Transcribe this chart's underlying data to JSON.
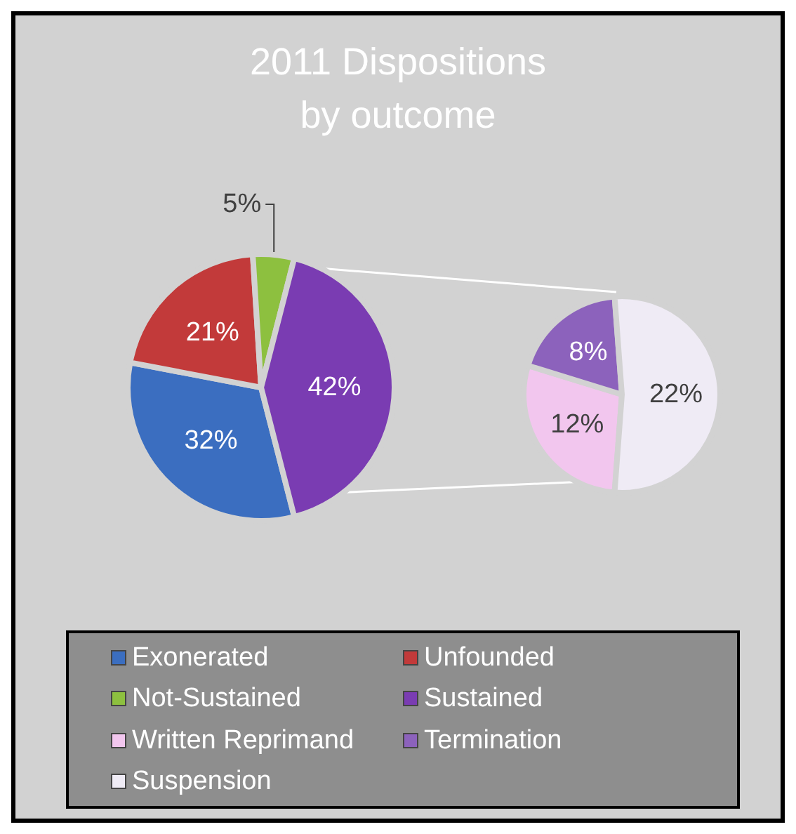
{
  "chart_data": [
    {
      "type": "pie",
      "title": "2011 Dispositions\nby outcome",
      "categories": [
        "Exonerated",
        "Unfounded",
        "Not-Sustained",
        "Sustained"
      ],
      "values": [
        32,
        21,
        5,
        42
      ],
      "colors": [
        "#3b6ec0",
        "#c23a3a",
        "#8dc03f",
        "#7a3cb2"
      ],
      "value_labels": [
        "32%",
        "21%",
        "5%",
        "42%"
      ],
      "legend": "bottom"
    },
    {
      "type": "pie",
      "categories": [
        "Written Reprimand",
        "Termination",
        "Suspension"
      ],
      "values": [
        12,
        8,
        22
      ],
      "colors": [
        "#f2c6ee",
        "#8c62bc",
        "#efebf5"
      ],
      "value_labels": [
        "12%",
        "8%",
        "22%"
      ],
      "legend": "bottom"
    }
  ]
}
